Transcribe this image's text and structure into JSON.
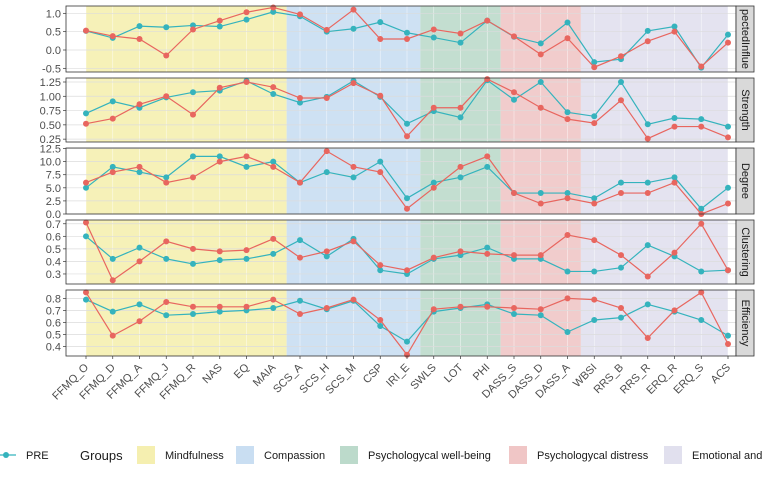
{
  "chart_data": {
    "type": "line",
    "categories": [
      "FFMQ_O",
      "FFMQ_D",
      "FFMQ_A",
      "FFMQ_J",
      "FFMQ_R",
      "NAS",
      "EQ",
      "MAIA",
      "SCS_A",
      "SCS_H",
      "SCS_M",
      "CSP",
      "IRI_E",
      "SWLS",
      "LOT",
      "PHI",
      "DASS_S",
      "DASS_D",
      "DASS_A",
      "WBSI",
      "RRS_B",
      "RRS_R",
      "ERQ_R",
      "ERQ_S",
      "ACS"
    ],
    "groups": [
      {
        "name": "Mindfulness",
        "from": 0,
        "to": 7,
        "color": "#f5efb0"
      },
      {
        "name": "Compassion",
        "from": 8,
        "to": 12,
        "color": "#c9def2"
      },
      {
        "name": "Psychologycal well-being",
        "from": 13,
        "to": 15,
        "color": "#bcdacb"
      },
      {
        "name": "Psychologycal distress",
        "from": 16,
        "to": 18,
        "color": "#f0c6c6"
      },
      {
        "name": "Emotional and",
        "from": 19,
        "to": 24,
        "color": "#e1e0ee"
      }
    ],
    "series_colors": {
      "PRE": "#35b3bd",
      "POST": "#e8665f"
    },
    "panels": [
      {
        "strip": "pectedInflue",
        "ylim": [
          -0.6,
          1.2
        ],
        "yticks": [
          "1.0",
          "0.5",
          "0.0",
          "-0.5"
        ],
        "series": [
          {
            "name": "PRE",
            "values": [
              0.52,
              0.33,
              0.65,
              0.62,
              0.67,
              0.64,
              0.83,
              1.04,
              0.92,
              0.5,
              0.58,
              0.76,
              0.47,
              0.34,
              0.2,
              0.8,
              0.36,
              0.18,
              0.75,
              -0.33,
              -0.25,
              0.52,
              0.64,
              -0.48,
              0.42
            ]
          },
          {
            "name": "POST",
            "values": [
              0.53,
              0.38,
              0.3,
              -0.15,
              0.56,
              0.8,
              1.03,
              1.16,
              0.97,
              0.55,
              1.1,
              0.3,
              0.3,
              0.56,
              0.45,
              0.8,
              0.37,
              -0.12,
              0.32,
              -0.47,
              -0.17,
              0.24,
              0.5,
              -0.45,
              0.2
            ]
          }
        ]
      },
      {
        "strip": "Strength",
        "ylim": [
          0.2,
          1.32
        ],
        "yticks": [
          "1.25",
          "1.00",
          "0.75",
          "0.50",
          "0.25"
        ],
        "series": [
          {
            "name": "PRE",
            "values": [
              0.7,
              0.91,
              0.8,
              0.98,
              1.07,
              1.1,
              1.27,
              1.04,
              0.89,
              0.99,
              1.27,
              0.99,
              0.52,
              0.74,
              0.63,
              1.28,
              0.94,
              1.25,
              0.72,
              0.65,
              1.25,
              0.51,
              0.62,
              0.6,
              0.47
            ]
          },
          {
            "name": "POST",
            "values": [
              0.52,
              0.61,
              0.86,
              1.0,
              0.68,
              1.15,
              1.25,
              1.16,
              0.97,
              0.97,
              1.23,
              1.01,
              0.3,
              0.8,
              0.8,
              1.3,
              1.07,
              0.8,
              0.6,
              0.53,
              0.93,
              0.26,
              0.47,
              0.47,
              0.28
            ]
          }
        ]
      },
      {
        "strip": "Degree",
        "ylim": [
          0,
          12.6
        ],
        "yticks": [
          "12.5",
          "10.0",
          "7.5",
          "5.0",
          "2.5",
          "0.0"
        ],
        "series": [
          {
            "name": "PRE",
            "values": [
              5,
              9,
              8,
              7,
              11,
              11,
              9,
              10,
              6,
              8,
              7,
              10,
              3,
              6,
              7,
              9,
              4,
              4,
              4,
              3,
              6,
              6,
              7,
              1,
              5
            ]
          },
          {
            "name": "POST",
            "values": [
              6,
              8,
              9,
              6,
              7,
              10,
              11,
              9,
              6,
              12,
              9,
              8,
              1,
              5,
              9,
              11,
              4,
              2,
              3,
              2,
              4,
              4,
              6,
              0,
              2
            ]
          }
        ]
      },
      {
        "strip": "Clustering",
        "ylim": [
          0.22,
          0.73
        ],
        "yticks": [
          "0.7",
          "0.6",
          "0.5",
          "0.4",
          "0.3"
        ],
        "series": [
          {
            "name": "PRE",
            "values": [
              0.6,
              0.42,
              0.51,
              0.42,
              0.38,
              0.41,
              0.42,
              0.46,
              0.57,
              0.44,
              0.58,
              0.33,
              0.3,
              0.42,
              0.45,
              0.51,
              0.42,
              0.42,
              0.32,
              0.32,
              0.35,
              0.53,
              0.44,
              0.32,
              0.33
            ]
          },
          {
            "name": "POST",
            "values": [
              0.71,
              0.25,
              0.4,
              0.56,
              0.5,
              0.48,
              0.49,
              0.58,
              0.43,
              0.48,
              0.56,
              0.37,
              0.33,
              0.43,
              0.48,
              0.46,
              0.45,
              0.45,
              0.61,
              0.57,
              0.45,
              0.28,
              0.47,
              0.7,
              0.33
            ]
          }
        ]
      },
      {
        "strip": "Efficiency",
        "ylim": [
          0.32,
          0.87
        ],
        "yticks": [
          "0.8",
          "0.7",
          "0.6",
          "0.5",
          "0.4"
        ],
        "series": [
          {
            "name": "PRE",
            "values": [
              0.79,
              0.69,
              0.75,
              0.66,
              0.67,
              0.69,
              0.7,
              0.72,
              0.78,
              0.71,
              0.78,
              0.57,
              0.44,
              0.69,
              0.72,
              0.75,
              0.67,
              0.66,
              0.52,
              0.62,
              0.64,
              0.75,
              0.69,
              0.62,
              0.49
            ]
          },
          {
            "name": "POST",
            "values": [
              0.85,
              0.49,
              0.61,
              0.77,
              0.73,
              0.73,
              0.73,
              0.79,
              0.67,
              0.72,
              0.79,
              0.62,
              0.33,
              0.71,
              0.73,
              0.73,
              0.72,
              0.71,
              0.8,
              0.79,
              0.72,
              0.47,
              0.7,
              0.85,
              0.42
            ]
          }
        ]
      }
    ],
    "legend": {
      "series_entries": [
        "PRE"
      ],
      "groups_title": "Groups",
      "position": "bottom"
    },
    "grid": true
  }
}
